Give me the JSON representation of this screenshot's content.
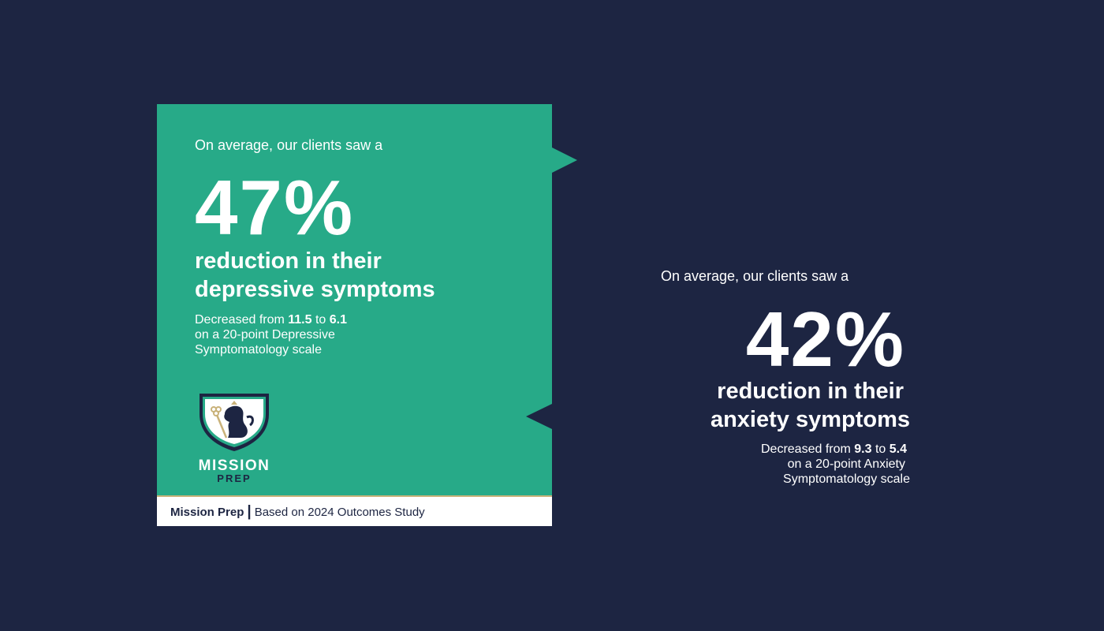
{
  "colors": {
    "background": "#1d2542",
    "card": "#27aa88",
    "accent_gold": "#c9b27a"
  },
  "depression": {
    "lead": "On average, our clients saw a",
    "percent": "47%",
    "headline_1": "reduction in their",
    "headline_2": "depressive symptoms",
    "detail_prefix": "Decreased from ",
    "from": "11.5",
    "to_word": " to ",
    "to": "6.1",
    "detail_2": "on a 20-point Depressive",
    "detail_3": "Symptomatology scale"
  },
  "anxiety": {
    "lead": "On average, our clients saw a",
    "percent": "42%",
    "headline_1": "reduction in their",
    "headline_2": "anxiety symptoms",
    "detail_prefix": "Decreased from ",
    "from": "9.3",
    "to_word": " to ",
    "to": "5.4",
    "detail_2": "on a 20-point Anxiety",
    "detail_3": "Symptomatology scale"
  },
  "logo": {
    "line1": "MISSION",
    "line2": "PREP",
    "icon": "shield-lion-key-icon"
  },
  "footer": {
    "brand": "Mission Prep",
    "separator": "|",
    "source": "Based on 2024 Outcomes Study"
  }
}
